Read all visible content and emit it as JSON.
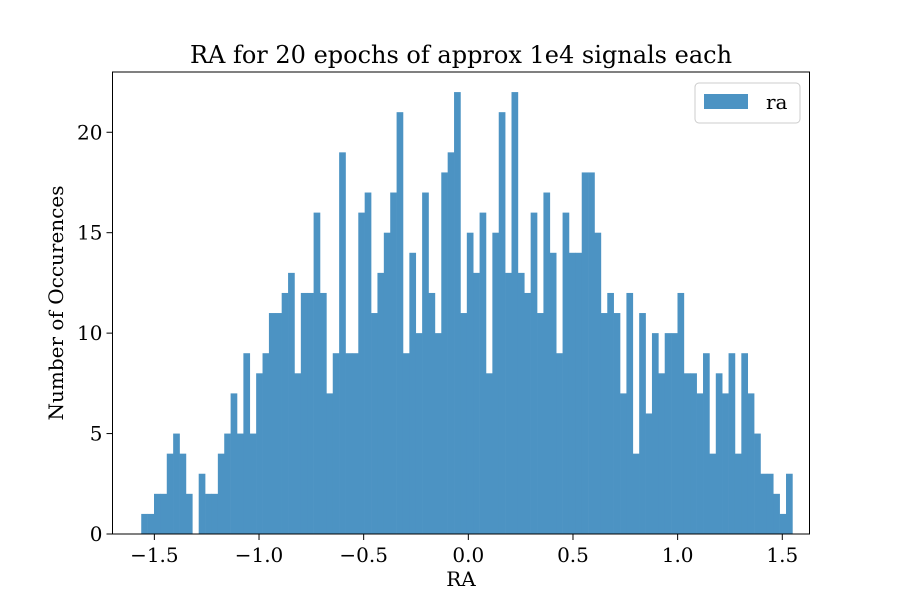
{
  "chart_data": {
    "type": "bar",
    "title": "RA for 20 epochs of approx 1e4 signals each",
    "xlabel": "RA",
    "ylabel": "Number of Occurences",
    "xlim": [
      -1.7,
      1.63
    ],
    "ylim": [
      0,
      23
    ],
    "x_ticks": [
      -1.5,
      -1.0,
      -0.5,
      0.0,
      0.5,
      1.0,
      1.5
    ],
    "x_tick_labels": [
      "−1.5",
      "−1.0",
      "−0.5",
      "0.0",
      "0.5",
      "1.0",
      "1.5"
    ],
    "y_ticks": [
      0,
      5,
      10,
      15,
      20
    ],
    "y_tick_labels": [
      "0",
      "5",
      "10",
      "15",
      "20"
    ],
    "bin_start": -1.5627,
    "bin_width": 0.0305,
    "values": [
      1,
      1,
      2,
      2,
      4,
      5,
      4,
      2,
      0,
      3,
      2,
      2,
      4,
      5,
      7,
      5,
      9,
      5,
      8,
      9,
      11,
      11,
      12,
      13,
      8,
      12,
      12,
      16,
      12,
      7,
      9,
      19,
      9,
      9,
      16,
      17,
      11,
      13,
      15,
      17,
      21,
      9,
      14,
      10,
      17,
      12,
      10,
      18,
      19,
      22,
      11,
      15,
      13,
      16,
      8,
      15,
      21,
      13,
      22,
      13,
      12,
      16,
      11,
      17,
      14,
      9,
      16,
      14,
      14,
      18,
      18,
      15,
      11,
      12,
      11,
      7,
      12,
      4,
      11,
      6,
      10,
      8,
      10,
      10,
      12,
      8,
      8,
      7,
      9,
      4,
      8,
      7,
      9,
      4,
      9,
      7,
      5,
      3,
      3,
      2,
      1,
      3
    ],
    "series": [
      {
        "name": "ra",
        "color": "#4c93c3"
      }
    ],
    "legend": {
      "placement": "top-right",
      "entries": [
        "ra"
      ]
    },
    "grid": false
  }
}
